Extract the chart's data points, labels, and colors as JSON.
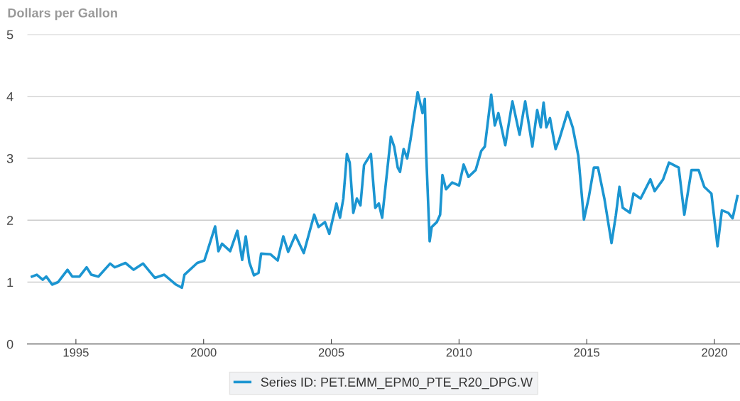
{
  "chart_data": {
    "type": "line",
    "ylabel": "Dollars per Gallon",
    "xlim": [
      1993.1,
      2021.0
    ],
    "xticks": [
      1995,
      2000,
      2005,
      2010,
      2015,
      2020
    ],
    "ylim": [
      0,
      5
    ],
    "yticks": [
      0,
      1,
      2,
      3,
      4,
      5
    ],
    "grid": "y",
    "legend": "bottom",
    "marker": "none",
    "line_style": "solid",
    "series": [
      {
        "name": "Series ID: PET.EMM_EPM0_PTE_R20_DPG.W",
        "color": "#1b95d1",
        "x": [
          1993.28,
          1993.47,
          1993.7,
          1993.84,
          1994.07,
          1994.3,
          1994.67,
          1994.86,
          1995.14,
          1995.42,
          1995.6,
          1995.88,
          1996.34,
          1996.52,
          1996.94,
          1997.26,
          1997.63,
          1998.09,
          1998.46,
          1998.92,
          1999.15,
          1999.25,
          1999.75,
          2000.03,
          2000.17,
          2000.45,
          2000.58,
          2000.72,
          2001.04,
          2001.32,
          2001.51,
          2001.65,
          2001.79,
          2001.97,
          2002.15,
          2002.25,
          2002.62,
          2002.9,
          2003.12,
          2003.31,
          2003.59,
          2003.92,
          2004.33,
          2004.5,
          2004.75,
          2004.92,
          2005.2,
          2005.34,
          2005.47,
          2005.61,
          2005.72,
          2005.86,
          2006.0,
          2006.14,
          2006.28,
          2006.55,
          2006.72,
          2006.86,
          2006.99,
          2007.33,
          2007.46,
          2007.6,
          2007.69,
          2007.83,
          2007.97,
          2008.1,
          2008.38,
          2008.57,
          2008.66,
          2008.71,
          2008.85,
          2008.93,
          2009.13,
          2009.26,
          2009.35,
          2009.49,
          2009.73,
          2010.0,
          2010.18,
          2010.37,
          2010.65,
          2010.87,
          2011.01,
          2011.26,
          2011.4,
          2011.54,
          2011.81,
          2012.09,
          2012.37,
          2012.59,
          2012.87,
          2013.06,
          2013.2,
          2013.31,
          2013.42,
          2013.56,
          2013.78,
          2013.92,
          2014.25,
          2014.45,
          2014.67,
          2014.89,
          2015.08,
          2015.28,
          2015.44,
          2015.69,
          2015.97,
          2016.14,
          2016.28,
          2016.41,
          2016.69,
          2016.83,
          2017.11,
          2017.49,
          2017.66,
          2017.99,
          2018.22,
          2018.6,
          2018.82,
          2019.1,
          2019.38,
          2019.6,
          2019.88,
          2020.12,
          2020.29,
          2020.54,
          2020.71,
          2020.9
        ],
        "values": [
          1.09,
          1.12,
          1.04,
          1.09,
          0.96,
          1.0,
          1.2,
          1.09,
          1.09,
          1.24,
          1.12,
          1.09,
          1.3,
          1.24,
          1.31,
          1.2,
          1.3,
          1.07,
          1.12,
          0.96,
          0.91,
          1.12,
          1.31,
          1.35,
          1.53,
          1.9,
          1.5,
          1.62,
          1.5,
          1.83,
          1.36,
          1.74,
          1.32,
          1.11,
          1.15,
          1.46,
          1.45,
          1.35,
          1.74,
          1.49,
          1.76,
          1.47,
          2.09,
          1.89,
          1.97,
          1.78,
          2.27,
          2.04,
          2.35,
          3.07,
          2.93,
          2.12,
          2.35,
          2.24,
          2.89,
          3.07,
          2.2,
          2.27,
          2.04,
          3.35,
          3.19,
          2.85,
          2.78,
          3.15,
          3.0,
          3.3,
          4.07,
          3.73,
          3.96,
          3.12,
          1.66,
          1.89,
          1.97,
          2.09,
          2.73,
          2.5,
          2.61,
          2.56,
          2.9,
          2.7,
          2.81,
          3.12,
          3.19,
          4.03,
          3.53,
          3.73,
          3.21,
          3.92,
          3.38,
          3.92,
          3.19,
          3.78,
          3.5,
          3.9,
          3.5,
          3.65,
          3.15,
          3.3,
          3.75,
          3.5,
          3.04,
          2.01,
          2.37,
          2.85,
          2.85,
          2.35,
          1.63,
          2.08,
          2.54,
          2.2,
          2.12,
          2.43,
          2.35,
          2.66,
          2.47,
          2.66,
          2.93,
          2.85,
          2.09,
          2.81,
          2.81,
          2.54,
          2.43,
          1.58,
          2.16,
          2.12,
          2.03,
          2.39
        ]
      }
    ]
  }
}
